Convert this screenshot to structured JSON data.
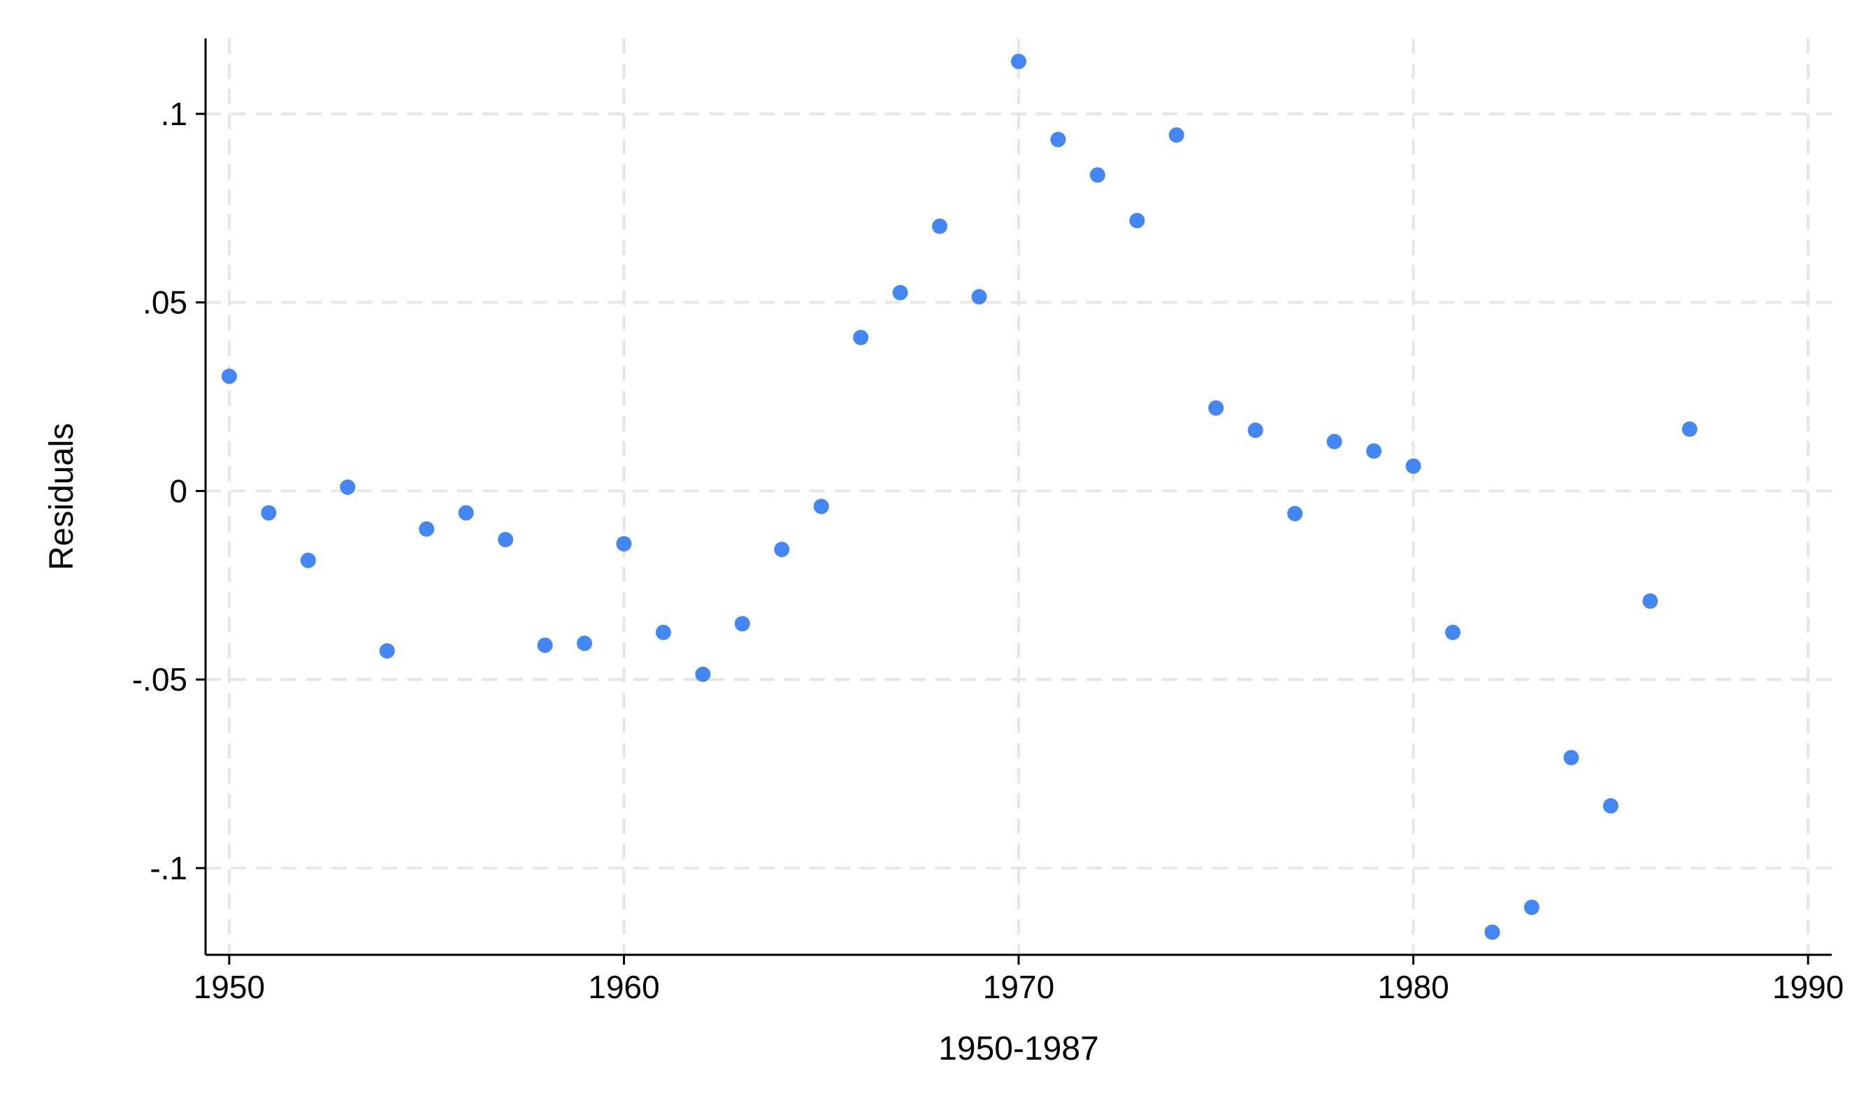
{
  "chart_data": {
    "type": "scatter",
    "xlabel": "1950-1987",
    "ylabel": "Residuals",
    "xlim": [
      1949.4,
      1990.6
    ],
    "ylim": [
      -0.123,
      0.12
    ],
    "x_ticks": [
      1950,
      1960,
      1970,
      1980,
      1990
    ],
    "x_tick_labels": [
      "1950",
      "1960",
      "1970",
      "1980",
      "1990"
    ],
    "y_ticks": [
      -0.1,
      -0.05,
      0,
      0.05,
      0.1
    ],
    "y_tick_labels": [
      "-.1",
      "-.05",
      "0",
      ".05",
      ".1"
    ],
    "grid": true,
    "marker_color": "#4287f5",
    "series": [
      {
        "points": [
          {
            "x": 1950,
            "y": 0.0304
          },
          {
            "x": 1951,
            "y": -0.0058
          },
          {
            "x": 1952,
            "y": -0.0184
          },
          {
            "x": 1953,
            "y": 0.001
          },
          {
            "x": 1954,
            "y": -0.0424
          },
          {
            "x": 1955,
            "y": -0.0101
          },
          {
            "x": 1956,
            "y": -0.0058
          },
          {
            "x": 1957,
            "y": -0.0129
          },
          {
            "x": 1958,
            "y": -0.0409
          },
          {
            "x": 1959,
            "y": -0.0404
          },
          {
            "x": 1960,
            "y": -0.014
          },
          {
            "x": 1961,
            "y": -0.0375
          },
          {
            "x": 1962,
            "y": -0.0486
          },
          {
            "x": 1963,
            "y": -0.0352
          },
          {
            "x": 1964,
            "y": -0.0155
          },
          {
            "x": 1965,
            "y": -0.0041
          },
          {
            "x": 1966,
            "y": 0.0407
          },
          {
            "x": 1967,
            "y": 0.0526
          },
          {
            "x": 1968,
            "y": 0.0702
          },
          {
            "x": 1969,
            "y": 0.0515
          },
          {
            "x": 1970,
            "y": 0.1139
          },
          {
            "x": 1971,
            "y": 0.0932
          },
          {
            "x": 1972,
            "y": 0.0838
          },
          {
            "x": 1973,
            "y": 0.0717
          },
          {
            "x": 1974,
            "y": 0.0944
          },
          {
            "x": 1975,
            "y": 0.022
          },
          {
            "x": 1976,
            "y": 0.0161
          },
          {
            "x": 1977,
            "y": -0.006
          },
          {
            "x": 1978,
            "y": 0.0131
          },
          {
            "x": 1979,
            "y": 0.0106
          },
          {
            "x": 1980,
            "y": 0.0066
          },
          {
            "x": 1981,
            "y": -0.0375
          },
          {
            "x": 1982,
            "y": -0.117
          },
          {
            "x": 1983,
            "y": -0.1104
          },
          {
            "x": 1984,
            "y": -0.0707
          },
          {
            "x": 1985,
            "y": -0.0835
          },
          {
            "x": 1986,
            "y": -0.0292
          },
          {
            "x": 1987,
            "y": 0.0164
          }
        ]
      }
    ]
  }
}
